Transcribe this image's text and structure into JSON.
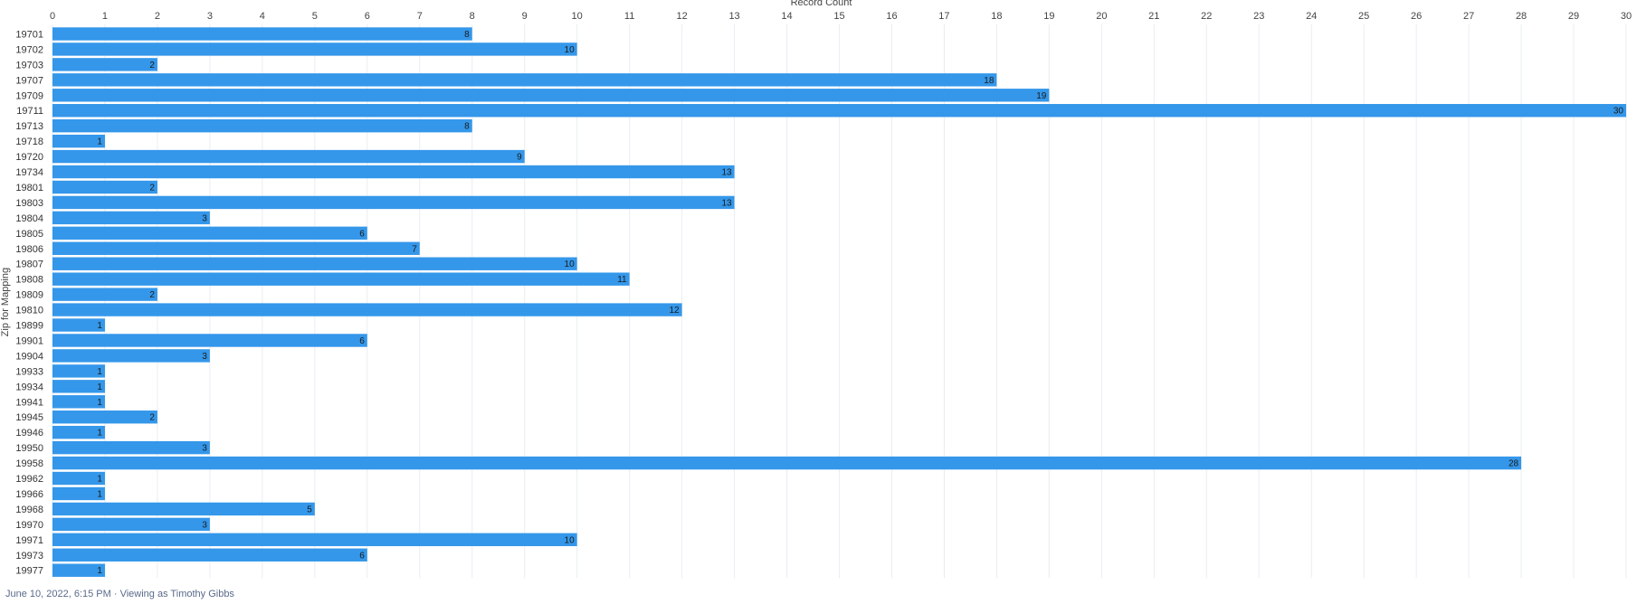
{
  "chart_data": {
    "type": "bar",
    "orientation": "horizontal",
    "xlabel": "Record Count",
    "ylabel": "Zip for Mapping",
    "xlim": [
      0,
      30
    ],
    "x_ticks": [
      0,
      1,
      2,
      3,
      4,
      5,
      6,
      7,
      8,
      9,
      10,
      11,
      12,
      13,
      14,
      15,
      16,
      17,
      18,
      19,
      20,
      21,
      22,
      23,
      24,
      25,
      26,
      27,
      28,
      29,
      30
    ],
    "x_tick_position": "top",
    "grid": true,
    "categories": [
      "19701",
      "19702",
      "19703",
      "19707",
      "19709",
      "19711",
      "19713",
      "19718",
      "19720",
      "19734",
      "19801",
      "19803",
      "19804",
      "19805",
      "19806",
      "19807",
      "19808",
      "19809",
      "19810",
      "19899",
      "19901",
      "19904",
      "19933",
      "19934",
      "19941",
      "19945",
      "19946",
      "19950",
      "19958",
      "19962",
      "19966",
      "19968",
      "19970",
      "19971",
      "19973",
      "19977"
    ],
    "values": [
      8,
      10,
      2,
      18,
      19,
      30,
      8,
      1,
      9,
      13,
      2,
      13,
      3,
      6,
      7,
      10,
      11,
      2,
      12,
      1,
      6,
      3,
      1,
      1,
      1,
      2,
      1,
      3,
      28,
      1,
      1,
      5,
      3,
      10,
      6,
      1
    ],
    "bar_color": "#3497ea",
    "grid_color": "#e9edf2",
    "label_color": "#1a1a1a"
  },
  "footer": {
    "text": "June 10, 2022, 6:15 PM · Viewing as Timothy Gibbs",
    "color": "#5a6a8a"
  }
}
